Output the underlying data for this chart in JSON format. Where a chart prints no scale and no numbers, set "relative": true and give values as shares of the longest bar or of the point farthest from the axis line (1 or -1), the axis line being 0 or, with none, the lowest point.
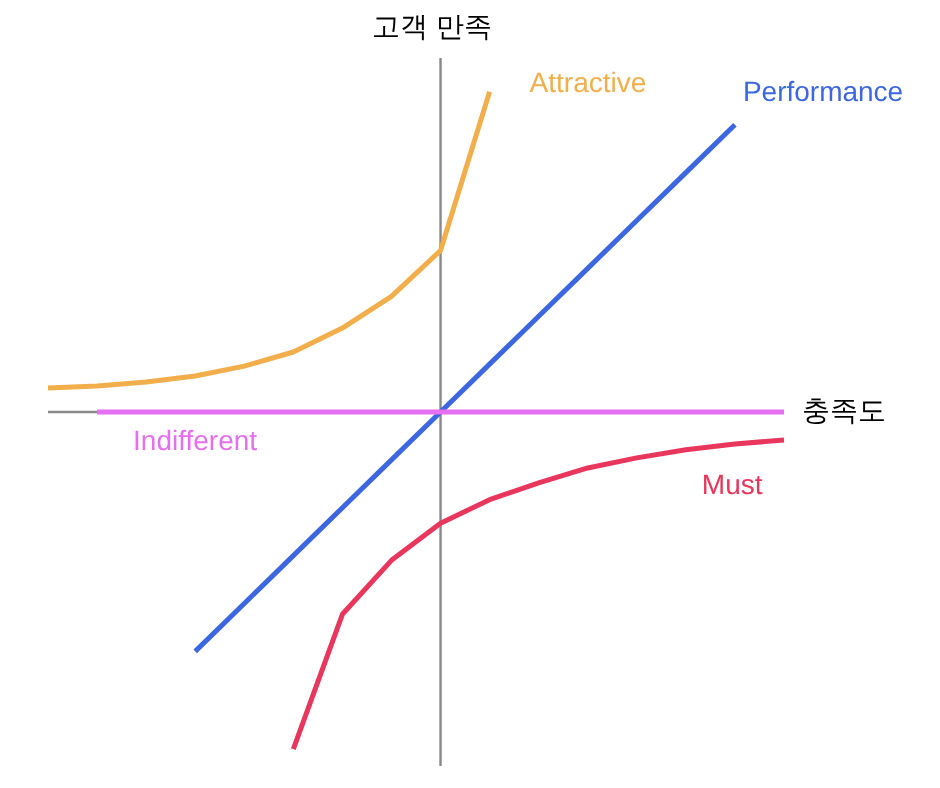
{
  "chart_data": {
    "type": "line",
    "relative": true,
    "xlabel": "충족도",
    "ylabel": "고객 만족",
    "tick_labels": false,
    "marker": "none",
    "line_style": "solid",
    "grid": false,
    "categories": [
      null,
      null,
      null,
      null,
      null,
      null,
      null,
      null,
      null,
      null,
      null,
      null,
      null,
      null,
      null,
      null
    ],
    "series": [
      {
        "name": "Attractive",
        "color": "#f2ae4a",
        "values": [
          0.071,
          0.077,
          0.089,
          0.107,
          0.136,
          0.178,
          0.249,
          0.343,
          0.479,
          0.95,
          null,
          null,
          null,
          null,
          null,
          null
        ]
      },
      {
        "name": "Performance",
        "color": "#3d67e0",
        "values": [
          null,
          null,
          null,
          -0.71,
          -0.568,
          -0.426,
          -0.284,
          -0.142,
          0,
          0.142,
          0.284,
          0.426,
          0.568,
          0.71,
          0.852,
          null
        ]
      },
      {
        "name": "Must",
        "color": "#e8365d",
        "values": [
          null,
          null,
          null,
          null,
          null,
          -1,
          -0.6,
          -0.44,
          -0.33,
          -0.26,
          -0.21,
          -0.166,
          -0.136,
          -0.112,
          -0.095,
          -0.083
        ]
      },
      {
        "name": "Indifferent",
        "color": "#e66ef0",
        "values": [
          null,
          0,
          0,
          0,
          0,
          0,
          0,
          0,
          0,
          0,
          0,
          0,
          0,
          0,
          0,
          0
        ]
      }
    ]
  }
}
